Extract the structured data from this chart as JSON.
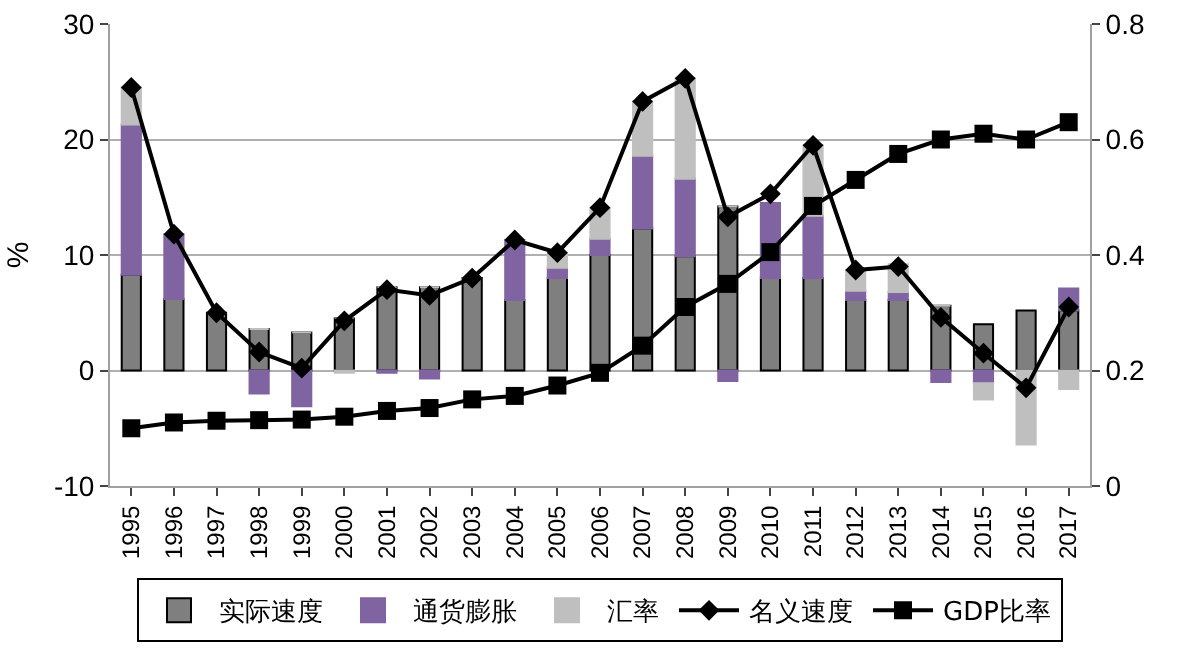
{
  "chart_data": {
    "type": "bar",
    "stacked": true,
    "ylabel": "%",
    "categories": [
      "1995",
      "1996",
      "1997",
      "1998",
      "1999",
      "2000",
      "2001",
      "2002",
      "2003",
      "2004",
      "2005",
      "2006",
      "2007",
      "2008",
      "2009",
      "2010",
      "2011",
      "2012",
      "2013",
      "2014",
      "2015",
      "2016",
      "2017"
    ],
    "series": [
      {
        "name": "实际速度",
        "type": "bar",
        "color": "#7f7f7f",
        "values": [
          8.3,
          6.2,
          5.0,
          3.6,
          3.3,
          4.5,
          7.2,
          7.2,
          8.0,
          6.1,
          8.0,
          10.0,
          12.3,
          9.9,
          14.2,
          8.0,
          8.0,
          6.1,
          6.1,
          5.6,
          4.0,
          5.2,
          5.2
        ]
      },
      {
        "name": "通货膨胀",
        "type": "bar",
        "color": "#8064a2",
        "values": [
          13.0,
          5.6,
          0,
          -2.0,
          -3.1,
          0,
          -0.2,
          -0.7,
          0,
          5.2,
          0.9,
          1.4,
          6.3,
          6.7,
          -0.9,
          6.5,
          5.4,
          0.8,
          0.7,
          -1.0,
          -1.1,
          null,
          1.9
        ]
      },
      {
        "name": "汇率",
        "type": "bar",
        "color": "#bfbfbf",
        "values": [
          3.2,
          0,
          0,
          0,
          0,
          -0.2,
          0,
          0,
          0,
          0,
          1.3,
          2.7,
          4.7,
          8.7,
          0,
          null,
          6.1,
          1.8,
          2.4,
          0,
          -1.4,
          -6.4,
          -1.6
        ]
      },
      {
        "name": "名义速度",
        "type": "line",
        "color": "#000000",
        "marker": "diamond",
        "values": [
          24.5,
          11.8,
          5.0,
          1.6,
          0.2,
          4.3,
          7.0,
          6.5,
          8.0,
          11.3,
          10.2,
          14.1,
          23.3,
          25.3,
          13.3,
          15.3,
          19.5,
          8.7,
          9.0,
          4.6,
          1.5,
          -1.5,
          5.5
        ]
      },
      {
        "name": "GDP比率",
        "type": "line",
        "axis": "y2",
        "color": "#000000",
        "marker": "square",
        "values": [
          0.1,
          0.11,
          0.113,
          0.114,
          0.115,
          0.12,
          0.13,
          0.135,
          0.15,
          0.156,
          0.174,
          0.196,
          0.243,
          0.31,
          0.35,
          0.405,
          0.485,
          0.53,
          0.575,
          0.6,
          0.61,
          0.6,
          0.63
        ]
      }
    ],
    "ylim": [
      -10,
      30
    ],
    "yticks": [
      -10,
      0,
      10,
      20,
      30
    ],
    "y2lim": [
      0,
      0.8
    ],
    "y2ticks": [
      0,
      0.2,
      0.4,
      0.6,
      0.8
    ],
    "grid": "y",
    "legend": "bottom"
  }
}
